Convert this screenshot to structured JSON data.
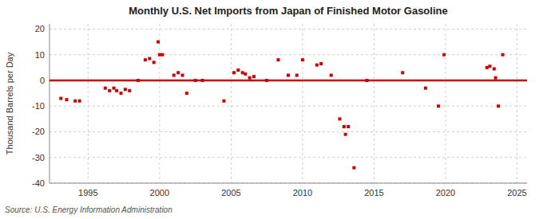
{
  "chart_data": {
    "type": "scatter",
    "title": "Monthly U.S. Net Imports from Japan of Finished Motor Gasoline",
    "ylabel": "Thousand Barrels per Day",
    "source": "Source: U.S. Energy Information Administration",
    "x": [
      1993.1,
      1993.5,
      1994.1,
      1994.4,
      1996.2,
      1996.5,
      1996.8,
      1997.0,
      1997.3,
      1997.6,
      1997.9,
      1998.5,
      1999.0,
      1999.3,
      1999.6,
      1999.9,
      2000.0,
      2000.2,
      2001.0,
      2001.3,
      2001.6,
      2001.9,
      2002.5,
      2003.0,
      2004.5,
      2005.2,
      2005.5,
      2005.8,
      2006.0,
      2006.3,
      2006.6,
      2007.5,
      2008.3,
      2009.0,
      2009.6,
      2010.0,
      2011.0,
      2011.3,
      2012.0,
      2012.6,
      2012.9,
      2013.0,
      2013.2,
      2013.6,
      2014.5,
      2017.0,
      2018.6,
      2019.5,
      2019.9,
      2022.9,
      2023.1,
      2023.4,
      2023.5,
      2023.7,
      2024.0
    ],
    "values": [
      -7,
      -7.5,
      -8,
      -8,
      -3,
      -4,
      -3,
      -4,
      -5,
      -3.5,
      -4,
      0,
      8,
      8.5,
      7,
      15,
      10,
      10,
      2,
      3,
      2,
      -5,
      0,
      0,
      -8,
      3,
      4,
      3,
      2.5,
      1,
      1.5,
      0,
      8,
      2,
      2,
      8,
      6,
      6.5,
      2,
      -15,
      -18,
      -21,
      -18,
      -34,
      0,
      3,
      -3,
      -10,
      10,
      5,
      5.5,
      4.5,
      1,
      -10,
      10
    ],
    "color": "#cc0000",
    "marker": "square",
    "hline": {
      "value": 0,
      "color": "#cc0000"
    },
    "xlim": [
      1992.3,
      2025.7
    ],
    "ylim": [
      -40,
      22
    ],
    "xticks": [
      1995,
      2000,
      2005,
      2010,
      2015,
      2020,
      2025
    ],
    "yticks": [
      -40,
      -30,
      -20,
      -10,
      0,
      10,
      20
    ],
    "grid": true
  }
}
